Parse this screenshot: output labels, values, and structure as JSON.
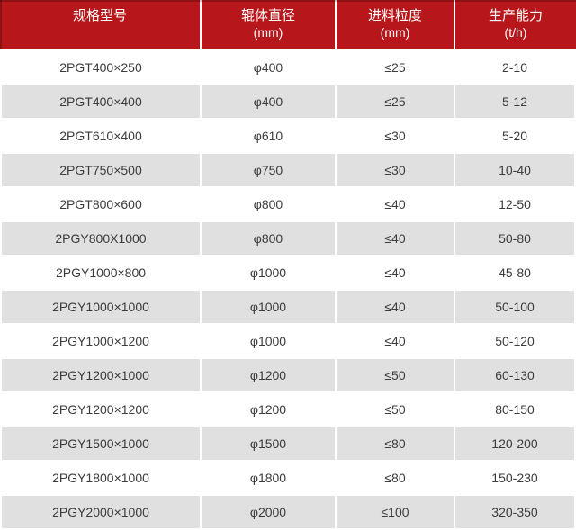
{
  "chart_data": {
    "type": "table",
    "columns": [
      {
        "label": "规格型号",
        "unit": ""
      },
      {
        "label": "辊体直径",
        "unit": "(mm)"
      },
      {
        "label": "进料粒度",
        "unit": "(mm)"
      },
      {
        "label": "生产能力",
        "unit": "(t/h)"
      }
    ],
    "rows": [
      [
        "2PGT400×250",
        "φ400",
        "≤25",
        "2-10"
      ],
      [
        "2PGT400×400",
        "φ400",
        "≤25",
        "5-12"
      ],
      [
        "2PGT610×400",
        "φ610",
        "≤30",
        "5-20"
      ],
      [
        "2PGT750×500",
        "φ750",
        "≤30",
        "10-40"
      ],
      [
        "2PGT800×600",
        "φ800",
        "≤40",
        "12-50"
      ],
      [
        "2PGY800X1000",
        "φ800",
        "≤40",
        "50-80"
      ],
      [
        "2PGY1000×800",
        "φ1000",
        "≤40",
        "45-80"
      ],
      [
        "2PGY1000×1000",
        "φ1000",
        "≤40",
        "50-100"
      ],
      [
        "2PGY1000×1200",
        "φ1000",
        "≤40",
        "50-120"
      ],
      [
        "2PGY1200×1000",
        "φ1200",
        "≤50",
        "60-130"
      ],
      [
        "2PGY1200×1200",
        "φ1200",
        "≤50",
        "80-150"
      ],
      [
        "2PGY1500×1000",
        "φ1500",
        "≤80",
        "120-200"
      ],
      [
        "2PGY1800×1000",
        "φ1800",
        "≤80",
        "150-230"
      ],
      [
        "2PGY2000×1000",
        "φ2000",
        "≤100",
        "320-350"
      ]
    ],
    "layout": {
      "header_lines": 2,
      "zebra_striping": true,
      "first_striped_row_index": 1
    }
  },
  "colors": {
    "header_bg": "#b7161a",
    "header_text": "#ffffff",
    "row_bg": "#ffffff",
    "alt_row_bg": "#e0e0e0",
    "body_text": "#3c3c3c",
    "grid_gap": "#ffffff"
  }
}
